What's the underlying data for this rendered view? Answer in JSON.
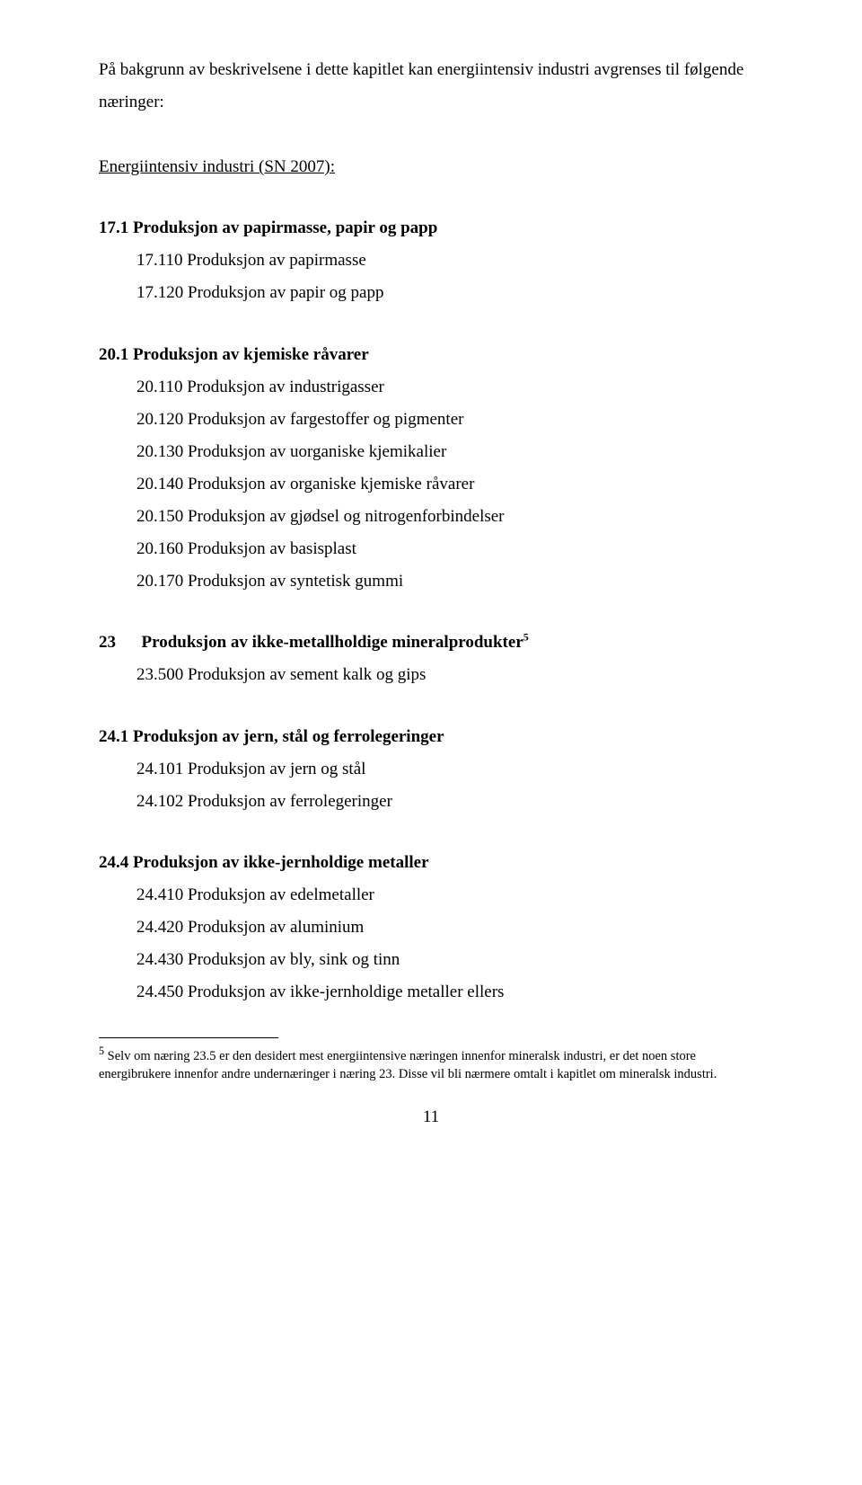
{
  "intro": "På bakgrunn av beskrivelsene i dette kapitlet kan energiintensiv industri avgrenses til følgende næringer:",
  "section_title": "Energiintensiv industri (SN 2007):",
  "g17": {
    "head": "17.1  Produksjon av papirmasse, papir og papp",
    "items": [
      "17.110  Produksjon av papirmasse",
      "17.120  Produksjon av papir og papp"
    ]
  },
  "g20": {
    "head": "20.1  Produksjon av kjemiske råvarer",
    "items": [
      "20.110  Produksjon av industrigasser",
      "20.120  Produksjon av fargestoffer og pigmenter",
      "20.130  Produksjon av uorganiske kjemikalier",
      "20.140  Produksjon av organiske kjemiske råvarer",
      "20.150  Produksjon av gjødsel og nitrogenforbindelser",
      "20.160  Produksjon av basisplast",
      "20.170  Produksjon av syntetisk gummi"
    ]
  },
  "g23": {
    "head_prefix": "23",
    "head_text": "Produksjon av ikke-metallholdige mineralprodukter",
    "fn_marker": "5",
    "items": [
      "23.500  Produksjon av sement kalk og gips"
    ]
  },
  "g241": {
    "head": "24.1  Produksjon av jern, stål og ferrolegeringer",
    "items": [
      "24.101  Produksjon av jern og stål",
      "24.102  Produksjon av ferrolegeringer"
    ]
  },
  "g244": {
    "head": "24.4 Produksjon av ikke-jernholdige metaller",
    "items": [
      "24.410  Produksjon av edelmetaller",
      "24.420  Produksjon av aluminium",
      "24.430  Produksjon av bly, sink og tinn",
      "24.450  Produksjon av ikke-jernholdige metaller ellers"
    ]
  },
  "footnote": {
    "marker": "5",
    "text": " Selv om næring 23.5 er den desidert mest energiintensive næringen innenfor mineralsk industri, er det noen store energibrukere innenfor andre undernæringer i næring 23. Disse vil bli nærmere omtalt i kapitlet om mineralsk industri."
  },
  "page_number": "11"
}
